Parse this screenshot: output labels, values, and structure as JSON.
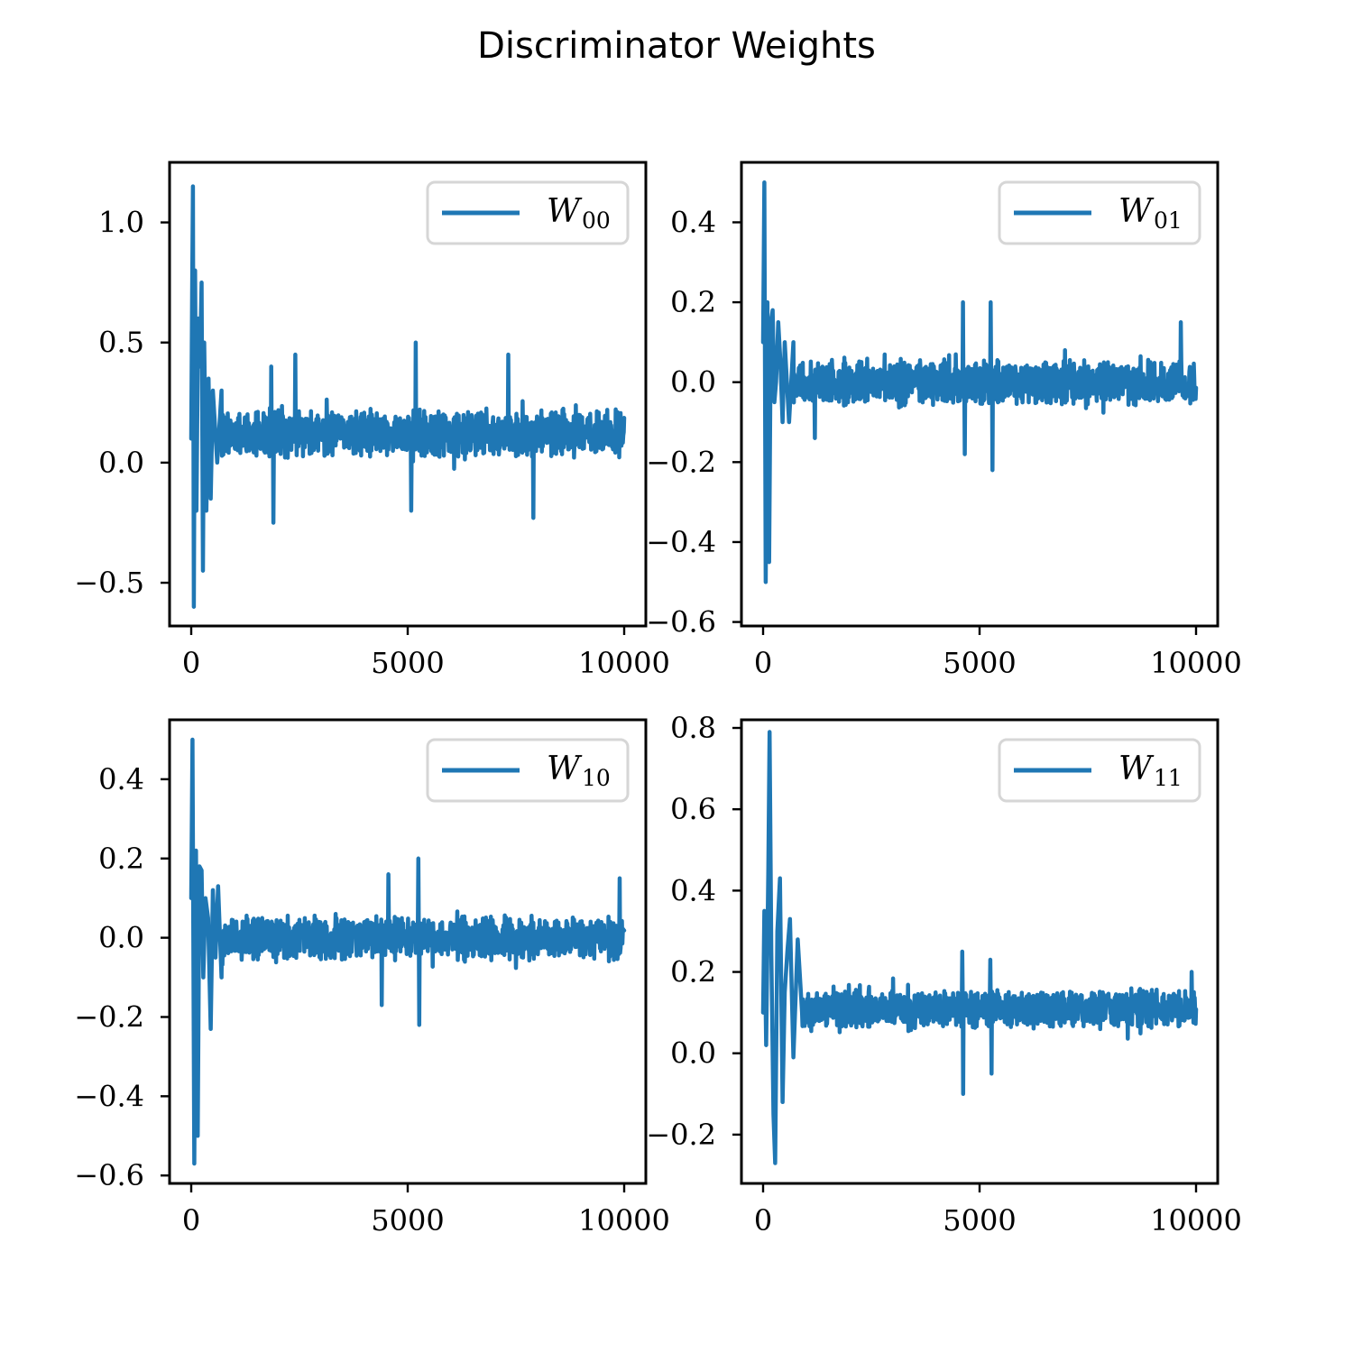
{
  "figure_title": "Discriminator Weights",
  "colors": {
    "line": "#1f77b4",
    "axes": "#000000",
    "legend_border": "#d6d6d6"
  },
  "chart_data": [
    {
      "type": "line",
      "title": "",
      "legend": {
        "base": "W",
        "sub": "00",
        "placement": "top-right"
      },
      "xlim": [
        -500,
        10500
      ],
      "ylim": [
        -0.68,
        1.25
      ],
      "xticks": [
        0,
        5000,
        10000
      ],
      "xtick_labels": [
        "0",
        "5000",
        "10000"
      ],
      "yticks": [
        -0.5,
        0.0,
        0.5,
        1.0
      ],
      "ytick_labels": [
        "−0.5",
        "0.0",
        "0.5",
        "1.0"
      ],
      "profile": {
        "x_range": [
          0,
          10000
        ],
        "points": 900,
        "early": [
          [
            0,
            0.1
          ],
          [
            20,
            0.7
          ],
          [
            40,
            1.15
          ],
          [
            60,
            -0.6
          ],
          [
            90,
            0.8
          ],
          [
            120,
            -0.2
          ],
          [
            160,
            0.6
          ],
          [
            200,
            0.4
          ],
          [
            240,
            0.75
          ],
          [
            270,
            -0.45
          ],
          [
            300,
            0.5
          ],
          [
            350,
            -0.2
          ],
          [
            400,
            0.35
          ],
          [
            450,
            -0.15
          ],
          [
            500,
            0.3
          ],
          [
            600,
            0.0
          ],
          [
            700,
            0.3
          ]
        ],
        "center": 0.12,
        "amplitude": 0.15,
        "spikes": [
          [
            1850,
            0.4
          ],
          [
            1900,
            -0.25
          ],
          [
            2400,
            0.45
          ],
          [
            5180,
            0.5
          ],
          [
            5080,
            -0.2
          ],
          [
            7320,
            0.45
          ],
          [
            7900,
            -0.23
          ]
        ],
        "seed": 11
      }
    },
    {
      "type": "line",
      "title": "",
      "legend": {
        "base": "W",
        "sub": "01",
        "placement": "top-right"
      },
      "xlim": [
        -500,
        10500
      ],
      "ylim": [
        -0.61,
        0.55
      ],
      "xticks": [
        0,
        5000,
        10000
      ],
      "xtick_labels": [
        "0",
        "5000",
        "10000"
      ],
      "yticks": [
        -0.6,
        -0.4,
        -0.2,
        0.0,
        0.2,
        0.4
      ],
      "ytick_labels": [
        "−0.6",
        "−0.4",
        "−0.2",
        "0.0",
        "0.2",
        "0.4"
      ],
      "profile": {
        "x_range": [
          0,
          10000
        ],
        "points": 900,
        "early": [
          [
            0,
            0.1
          ],
          [
            30,
            0.5
          ],
          [
            60,
            -0.5
          ],
          [
            100,
            0.2
          ],
          [
            140,
            -0.45
          ],
          [
            180,
            0.15
          ],
          [
            220,
            0.18
          ],
          [
            260,
            -0.05
          ],
          [
            300,
            0.0
          ],
          [
            350,
            0.15
          ],
          [
            400,
            0.05
          ],
          [
            450,
            -0.1
          ],
          [
            500,
            0.1
          ],
          [
            600,
            -0.1
          ],
          [
            700,
            0.1
          ]
        ],
        "center": 0.0,
        "amplitude": 0.085,
        "spikes": [
          [
            4620,
            0.2
          ],
          [
            4660,
            -0.18
          ],
          [
            5260,
            0.2
          ],
          [
            5300,
            -0.22
          ],
          [
            1200,
            -0.14
          ],
          [
            9650,
            0.15
          ]
        ],
        "seed": 23
      }
    },
    {
      "type": "line",
      "title": "",
      "legend": {
        "base": "W",
        "sub": "10",
        "placement": "top-right"
      },
      "xlim": [
        -500,
        10500
      ],
      "ylim": [
        -0.62,
        0.55
      ],
      "xticks": [
        0,
        5000,
        10000
      ],
      "xtick_labels": [
        "0",
        "5000",
        "10000"
      ],
      "yticks": [
        -0.6,
        -0.4,
        -0.2,
        0.0,
        0.2,
        0.4
      ],
      "ytick_labels": [
        "−0.6",
        "−0.4",
        "−0.2",
        "0.0",
        "0.2",
        "0.4"
      ],
      "profile": {
        "x_range": [
          0,
          10000
        ],
        "points": 900,
        "early": [
          [
            0,
            0.1
          ],
          [
            30,
            0.5
          ],
          [
            70,
            -0.57
          ],
          [
            110,
            0.22
          ],
          [
            150,
            -0.5
          ],
          [
            190,
            0.18
          ],
          [
            240,
            0.17
          ],
          [
            280,
            -0.1
          ],
          [
            330,
            0.1
          ],
          [
            390,
            0.05
          ],
          [
            450,
            -0.23
          ],
          [
            500,
            0.12
          ],
          [
            560,
            -0.05
          ],
          [
            620,
            0.13
          ],
          [
            700,
            -0.1
          ]
        ],
        "center": 0.0,
        "amplitude": 0.085,
        "spikes": [
          [
            5250,
            0.2
          ],
          [
            5270,
            -0.22
          ],
          [
            4550,
            0.16
          ],
          [
            4400,
            -0.17
          ],
          [
            9900,
            0.15
          ]
        ],
        "seed": 37
      }
    },
    {
      "type": "line",
      "title": "",
      "legend": {
        "base": "W",
        "sub": "11",
        "placement": "top-right"
      },
      "xlim": [
        -500,
        10500
      ],
      "ylim": [
        -0.32,
        0.82
      ],
      "xticks": [
        0,
        5000,
        10000
      ],
      "xtick_labels": [
        "0",
        "5000",
        "10000"
      ],
      "yticks": [
        -0.2,
        0.0,
        0.2,
        0.4,
        0.6,
        0.8
      ],
      "ytick_labels": [
        "−0.2",
        "0.0",
        "0.2",
        "0.4",
        "0.6",
        "0.8"
      ],
      "profile": {
        "x_range": [
          0,
          10000
        ],
        "points": 900,
        "early": [
          [
            0,
            0.1
          ],
          [
            30,
            0.35
          ],
          [
            70,
            0.02
          ],
          [
            120,
            0.45
          ],
          [
            150,
            0.79
          ],
          [
            190,
            0.25
          ],
          [
            240,
            -0.15
          ],
          [
            280,
            -0.27
          ],
          [
            330,
            0.3
          ],
          [
            390,
            0.43
          ],
          [
            450,
            -0.12
          ],
          [
            500,
            0.15
          ],
          [
            560,
            0.25
          ],
          [
            620,
            0.33
          ],
          [
            700,
            -0.01
          ],
          [
            800,
            0.28
          ],
          [
            900,
            0.1
          ]
        ],
        "center": 0.11,
        "amplitude": 0.075,
        "spikes": [
          [
            4620,
            -0.1
          ],
          [
            4600,
            0.25
          ],
          [
            5250,
            0.23
          ],
          [
            5280,
            -0.05
          ],
          [
            9900,
            0.2
          ]
        ],
        "seed": 53
      }
    }
  ]
}
